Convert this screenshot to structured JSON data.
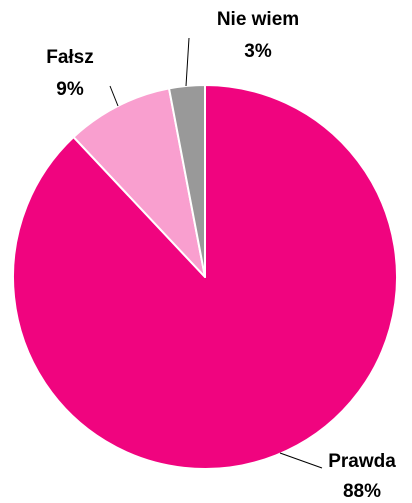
{
  "chart_data": {
    "type": "pie",
    "categories": [
      "Prawda",
      "Fałsz",
      "Nie wiem"
    ],
    "values": [
      88,
      9,
      3
    ],
    "value_labels": [
      "88%",
      "9%",
      "3%"
    ],
    "colors": [
      "#f0047f",
      "#f99fcf",
      "#999999"
    ]
  }
}
